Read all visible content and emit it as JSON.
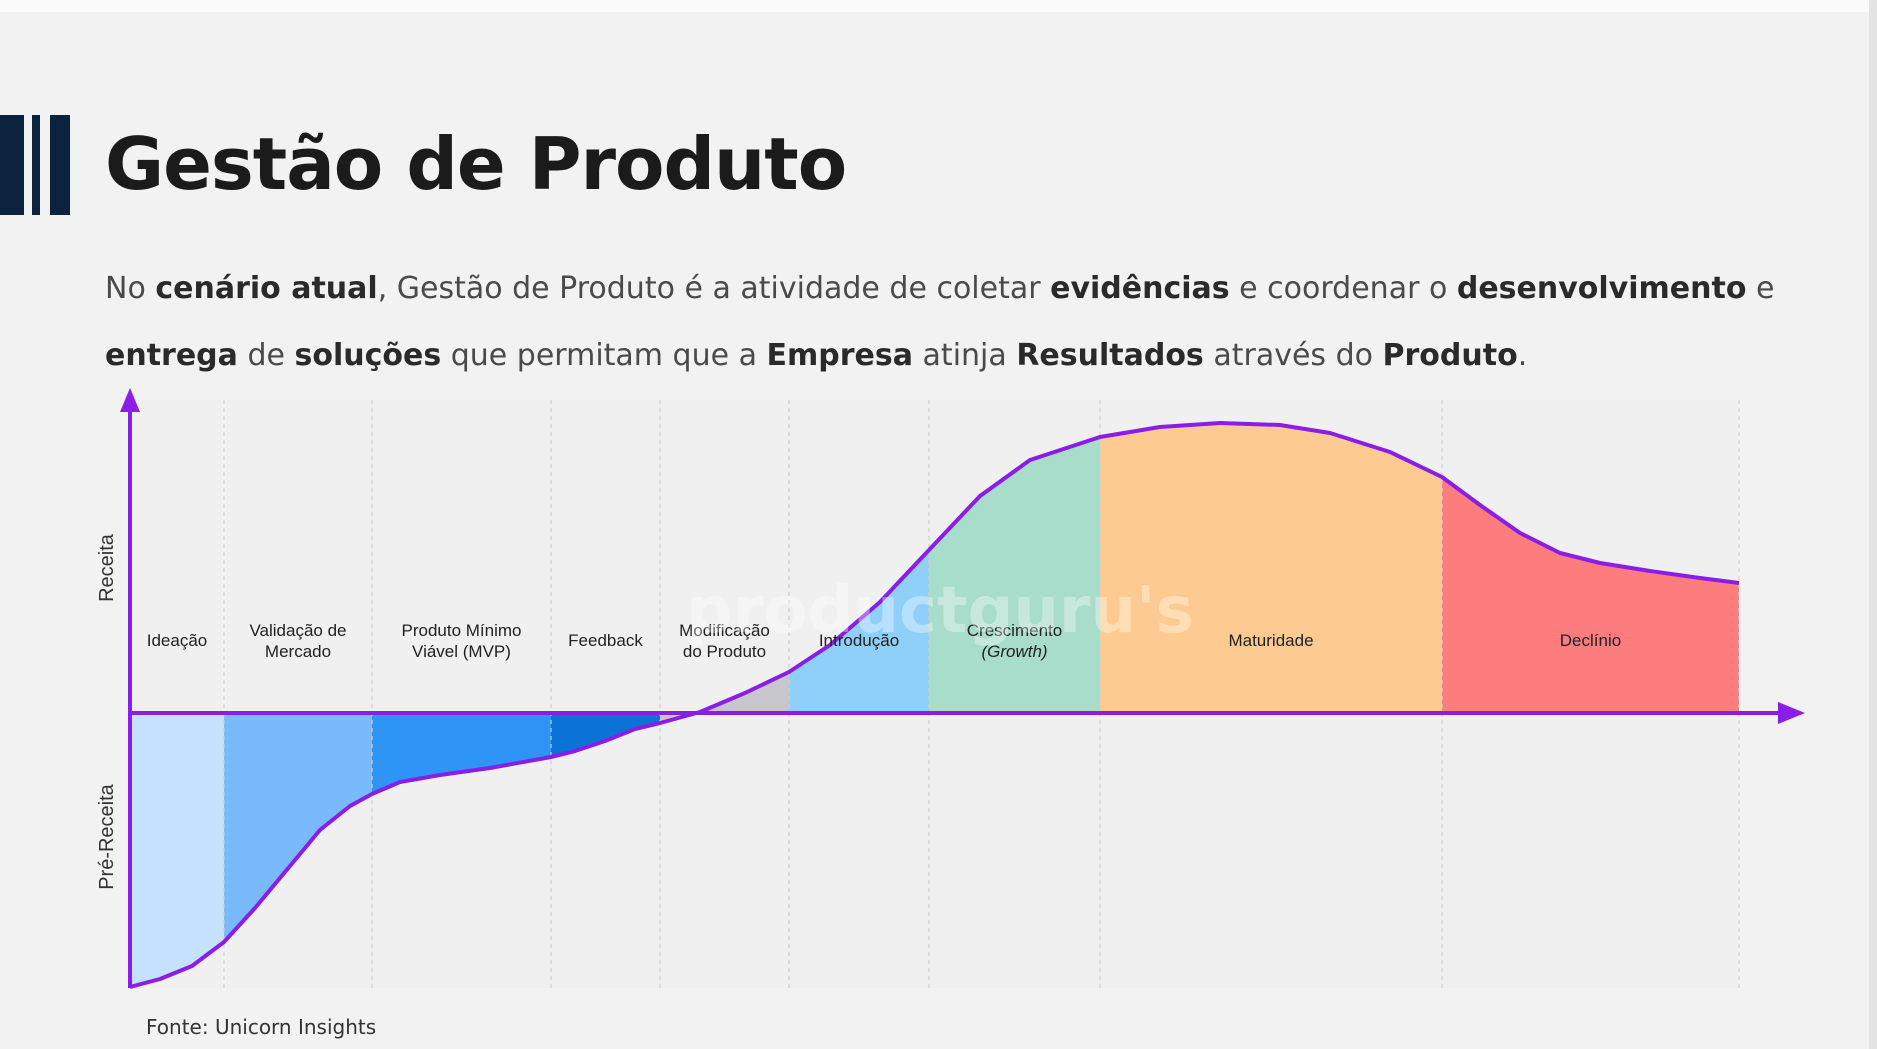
{
  "slide": {
    "title": "Gestão de Produto",
    "intro_segments": [
      {
        "text": "No ",
        "bold": false
      },
      {
        "text": "cenário atual",
        "bold": true
      },
      {
        "text": ", Gestão de Produto é a atividade de coletar ",
        "bold": false
      },
      {
        "text": "evidências",
        "bold": true
      },
      {
        "text": " e coordenar o ",
        "bold": false
      },
      {
        "text": "desenvolvimento",
        "bold": true
      },
      {
        "text": " e ",
        "bold": false
      },
      {
        "text": "entrega",
        "bold": true
      },
      {
        "text": " de ",
        "bold": false
      },
      {
        "text": "soluções",
        "bold": true
      },
      {
        "text": " que permitam que a ",
        "bold": false
      },
      {
        "text": "Empresa",
        "bold": true
      },
      {
        "text": " atinja ",
        "bold": false
      },
      {
        "text": "Resultados",
        "bold": true
      },
      {
        "text": " através do ",
        "bold": false
      },
      {
        "text": "Produto",
        "bold": true
      },
      {
        "text": ".",
        "bold": false
      }
    ],
    "source": "Fonte: Unicorn Insights",
    "watermark": "productguru's"
  },
  "diagram": {
    "y_axis_top_label": "Receita",
    "y_axis_bottom_label": "Pré-Receita",
    "axis_color": "#8a1ee6",
    "stages": [
      {
        "label": [
          "Ideação"
        ],
        "color": "#c4e1fd"
      },
      {
        "label": [
          "Validação de",
          "Mercado"
        ],
        "color": "#78bafb"
      },
      {
        "label": [
          "Produto Mínimo",
          "Viável (MVP)"
        ],
        "color": "#2e94f6"
      },
      {
        "label": [
          "Feedback"
        ],
        "color": "#0b73d8"
      },
      {
        "label": [
          "Modificação",
          "do Produto"
        ],
        "color": "#c6c6cc"
      },
      {
        "label": [
          "Introdução"
        ],
        "color": "#8fd0fb"
      },
      {
        "label": [
          "Crescimento",
          "(Growth)"
        ],
        "italic_second_line": true,
        "color": "#a8dccb"
      },
      {
        "label": [
          "Maturidade"
        ],
        "color": "#fdcb91"
      },
      {
        "label": [
          "Declínio"
        ],
        "color": "#fd7c7e"
      }
    ]
  }
}
